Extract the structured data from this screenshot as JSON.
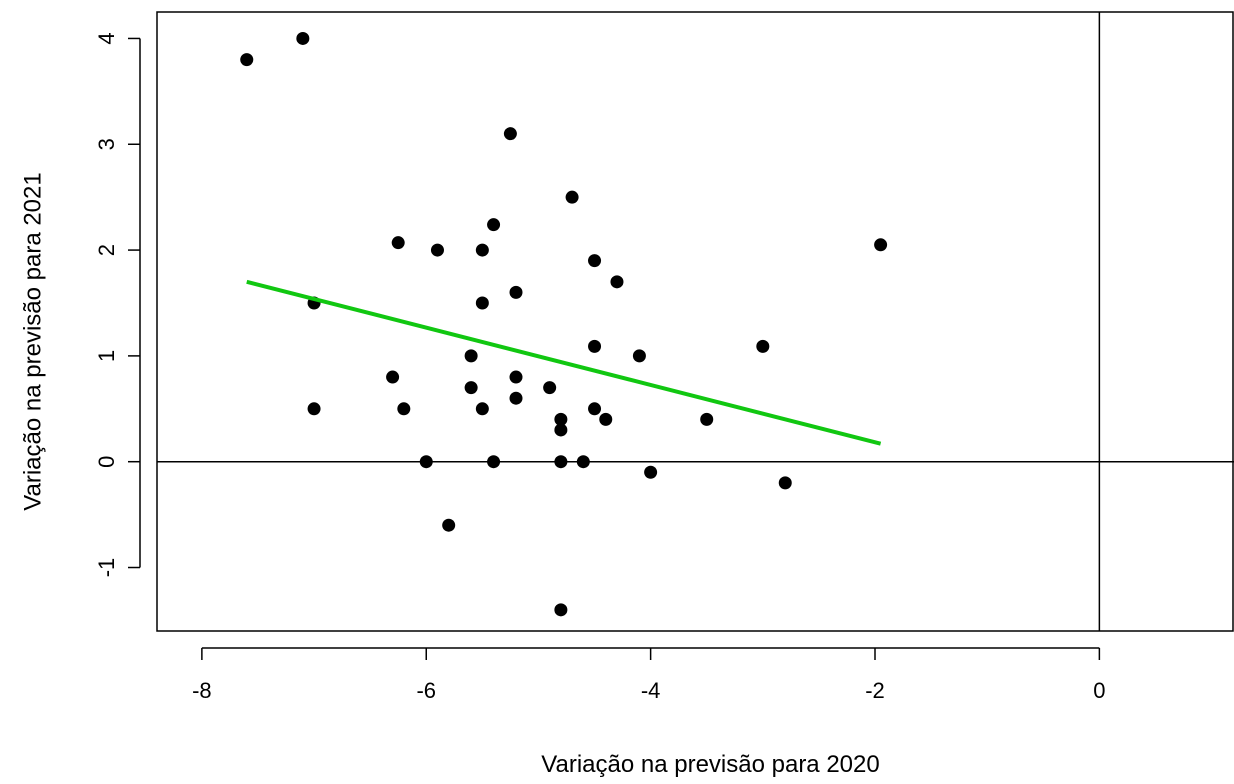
{
  "chart_data": {
    "type": "scatter",
    "title": "",
    "xlabel": "Variação na previsão para 2020",
    "ylabel": "Variação na previsão para 2021",
    "xlim": [
      -8.4,
      1.2
    ],
    "ylim": [
      -1.6,
      4.25
    ],
    "x_ticks": [
      -8,
      -6,
      -4,
      -2,
      0
    ],
    "x_tick_labels": [
      "-8",
      "-6",
      "-4",
      "-2",
      "0"
    ],
    "y_ticks": [
      -1,
      0,
      1,
      2,
      3,
      4
    ],
    "y_tick_labels": [
      "-1",
      "0",
      "1",
      "2",
      "3",
      "4"
    ],
    "grid": false,
    "legend": "none",
    "reference_lines": {
      "x": 0,
      "y": 0
    },
    "point_color": "#000000",
    "trend_color": "#11c711",
    "points": [
      {
        "x": -7.6,
        "y": 3.8
      },
      {
        "x": -7.1,
        "y": 4.0
      },
      {
        "x": -7.0,
        "y": 1.5
      },
      {
        "x": -7.0,
        "y": 0.5
      },
      {
        "x": -6.3,
        "y": 0.8
      },
      {
        "x": -6.25,
        "y": 2.07
      },
      {
        "x": -6.2,
        "y": 0.5
      },
      {
        "x": -6.0,
        "y": 0.0
      },
      {
        "x": -5.9,
        "y": 2.0
      },
      {
        "x": -5.8,
        "y": -0.6
      },
      {
        "x": -5.6,
        "y": 1.0
      },
      {
        "x": -5.6,
        "y": 0.7
      },
      {
        "x": -5.5,
        "y": 2.0
      },
      {
        "x": -5.5,
        "y": 1.5
      },
      {
        "x": -5.5,
        "y": 0.5
      },
      {
        "x": -5.4,
        "y": 2.24
      },
      {
        "x": -5.4,
        "y": 0.0
      },
      {
        "x": -5.25,
        "y": 3.1
      },
      {
        "x": -5.2,
        "y": 1.6
      },
      {
        "x": -5.2,
        "y": 0.8
      },
      {
        "x": -5.2,
        "y": 0.6
      },
      {
        "x": -4.9,
        "y": 0.7
      },
      {
        "x": -4.8,
        "y": 0.4
      },
      {
        "x": -4.8,
        "y": 0.3
      },
      {
        "x": -4.8,
        "y": 0.0
      },
      {
        "x": -4.8,
        "y": -1.4
      },
      {
        "x": -4.7,
        "y": 2.5
      },
      {
        "x": -4.6,
        "y": 0.0
      },
      {
        "x": -4.5,
        "y": 1.9
      },
      {
        "x": -4.5,
        "y": 1.09
      },
      {
        "x": -4.5,
        "y": 0.5
      },
      {
        "x": -4.4,
        "y": 0.4
      },
      {
        "x": -4.3,
        "y": 1.7
      },
      {
        "x": -4.1,
        "y": 1.0
      },
      {
        "x": -4.0,
        "y": -0.1
      },
      {
        "x": -3.5,
        "y": 0.4
      },
      {
        "x": -3.0,
        "y": 1.09
      },
      {
        "x": -2.8,
        "y": -0.2
      },
      {
        "x": -1.95,
        "y": 2.05
      }
    ],
    "trend_line": {
      "x": [
        -7.6,
        -1.95
      ],
      "y": [
        1.7,
        0.17
      ]
    }
  }
}
